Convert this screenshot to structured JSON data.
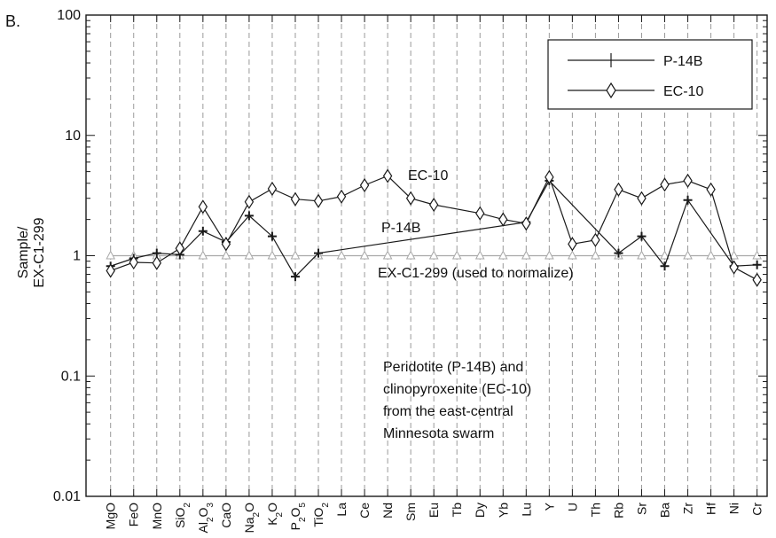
{
  "chart_data": {
    "type": "line",
    "panel_label": "B.",
    "ylabel_lines": [
      "Sample/",
      "EX-C1-299"
    ],
    "yscale": "log",
    "ylim": [
      0.01,
      100
    ],
    "y_ticks": [
      0.01,
      0.1,
      1,
      10,
      100
    ],
    "y_tick_labels": [
      "0.01",
      "0.1",
      "1",
      "10",
      "100"
    ],
    "grid": "vertical-dashed",
    "legend_position": "top-right",
    "categories": [
      [
        "MgO"
      ],
      [
        "FeO"
      ],
      [
        "MnO"
      ],
      [
        "SiO",
        "2"
      ],
      [
        "Al",
        "2",
        "O",
        "3"
      ],
      [
        "CaO"
      ],
      [
        "Na",
        "2",
        "O"
      ],
      [
        "K",
        "2",
        "O"
      ],
      [
        "P",
        "2",
        "O",
        "5"
      ],
      [
        "TiO",
        "2"
      ],
      [
        "La"
      ],
      [
        "Ce"
      ],
      [
        "Nd"
      ],
      [
        "Sm"
      ],
      [
        "Eu"
      ],
      [
        "Tb"
      ],
      [
        "Dy"
      ],
      [
        "Yb"
      ],
      [
        "Lu"
      ],
      [
        "Y"
      ],
      [
        "U"
      ],
      [
        "Th"
      ],
      [
        "Rb"
      ],
      [
        "Sr"
      ],
      [
        "Ba"
      ],
      [
        "Zr"
      ],
      [
        "Hf"
      ],
      [
        "Ni"
      ],
      [
        "Cr"
      ]
    ],
    "series": [
      {
        "name": "P-14B",
        "marker": "plus",
        "values": [
          0.82,
          0.95,
          1.05,
          1.02,
          1.6,
          1.3,
          2.15,
          1.45,
          0.67,
          1.05,
          null,
          null,
          null,
          null,
          null,
          null,
          null,
          null,
          1.9,
          4.2,
          null,
          null,
          1.05,
          1.45,
          0.82,
          2.9,
          null,
          0.82,
          0.84
        ]
      },
      {
        "name": "EC-10",
        "marker": "diamond",
        "values": [
          0.75,
          0.88,
          0.87,
          1.15,
          2.55,
          1.25,
          2.8,
          3.6,
          2.95,
          2.85,
          3.1,
          3.85,
          4.6,
          3.0,
          2.65,
          null,
          2.25,
          2.0,
          1.85,
          4.5,
          1.25,
          1.35,
          3.55,
          3.0,
          3.9,
          4.2,
          3.55,
          0.8,
          0.63
        ]
      },
      {
        "name": "EX-C1-299",
        "marker": "triangle",
        "values": [
          1,
          1,
          1,
          1,
          1,
          1,
          1,
          1,
          1,
          1,
          1,
          1,
          1,
          1,
          1,
          1,
          1,
          1,
          1,
          1,
          1,
          1,
          1,
          1,
          1,
          1,
          1,
          1,
          1
        ]
      }
    ],
    "annotations": {
      "ec10_label": "EC-10",
      "p14b_label": "P-14B",
      "ref_label": "EX-C1-299 (used to normalize)",
      "note_lines": [
        "Peridotite (P-14B) and",
        "clinopyroxenite (EC-10)",
        "from the east-central",
        "Minnesota swarm"
      ]
    },
    "colors": {
      "axis": "#1a1a1a",
      "grid": "#9a9a9a",
      "series": "#1a1a1a",
      "reference": "#a8a8a8"
    }
  }
}
